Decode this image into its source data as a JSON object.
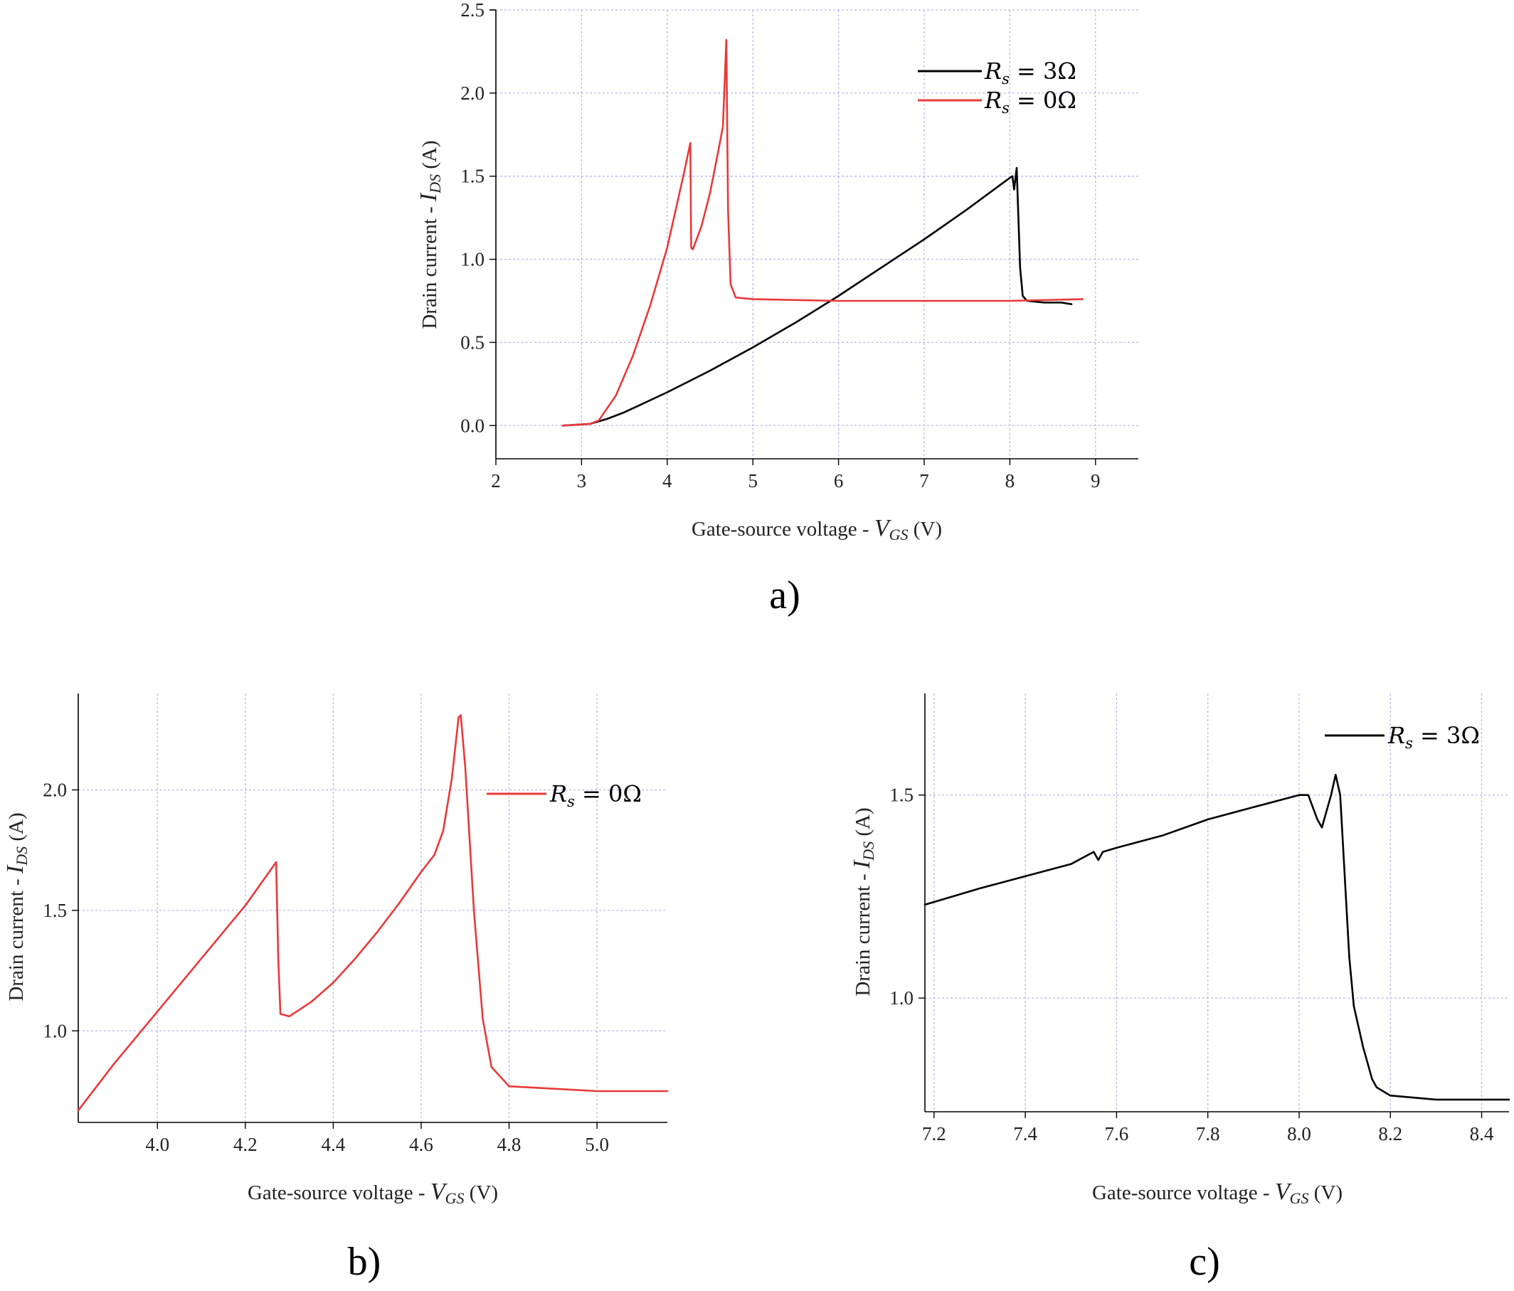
{
  "chart_data": [
    {
      "id": "a",
      "type": "line",
      "panel_label": "a)",
      "xlabel": "Gate-source voltage - V_GS (V)",
      "ylabel": "Drain current - I_DS (A)",
      "xlim": [
        2,
        9.5
      ],
      "ylim": [
        -0.2,
        2.5
      ],
      "xticks": [
        "2",
        "3",
        "4",
        "5",
        "6",
        "7",
        "8",
        "9"
      ],
      "yticks": [
        "0.0",
        "0.5",
        "1.0",
        "1.5",
        "2.0",
        "2.5"
      ],
      "grid": true,
      "legend_position": "top-right",
      "series": [
        {
          "name": "Rs = 3Ω",
          "color": "#000000",
          "x": [
            2.78,
            3.1,
            3.3,
            3.5,
            4.0,
            4.5,
            5.0,
            5.5,
            6.0,
            6.5,
            7.0,
            7.5,
            8.0,
            8.03,
            8.05,
            8.08,
            8.1,
            8.12,
            8.15,
            8.2,
            8.4,
            8.6,
            8.72
          ],
          "y": [
            0.0,
            0.01,
            0.04,
            0.08,
            0.2,
            0.33,
            0.47,
            0.62,
            0.78,
            0.95,
            1.12,
            1.3,
            1.49,
            1.5,
            1.42,
            1.55,
            1.25,
            0.95,
            0.78,
            0.75,
            0.74,
            0.74,
            0.73
          ]
        },
        {
          "name": "Rs = 0Ω",
          "color": "#e8393a",
          "x": [
            2.78,
            3.1,
            3.2,
            3.4,
            3.6,
            3.8,
            4.0,
            4.2,
            4.27,
            4.28,
            4.3,
            4.4,
            4.5,
            4.6,
            4.65,
            4.69,
            4.71,
            4.74,
            4.8,
            5.0,
            6.0,
            7.0,
            8.0,
            8.85
          ],
          "y": [
            0.0,
            0.01,
            0.03,
            0.18,
            0.42,
            0.72,
            1.07,
            1.53,
            1.7,
            1.07,
            1.06,
            1.2,
            1.4,
            1.66,
            1.8,
            2.32,
            1.3,
            0.85,
            0.77,
            0.76,
            0.75,
            0.75,
            0.75,
            0.76
          ]
        }
      ]
    },
    {
      "id": "b",
      "type": "line",
      "panel_label": "b)",
      "xlabel": "Gate-source voltage - V_GS (V)",
      "ylabel": "Drain current - I_DS (A)",
      "xlim": [
        3.82,
        5.16
      ],
      "ylim": [
        0.62,
        2.4
      ],
      "xticks": [
        "4.0",
        "4.2",
        "4.4",
        "4.6",
        "4.8",
        "5.0"
      ],
      "yticks": [
        "1.0",
        "1.5",
        "2.0"
      ],
      "grid": true,
      "legend_position": "top-right",
      "series": [
        {
          "name": "Rs = 0Ω",
          "color": "#e8393a",
          "x": [
            3.82,
            3.9,
            4.0,
            4.1,
            4.2,
            4.27,
            4.275,
            4.28,
            4.3,
            4.35,
            4.4,
            4.45,
            4.5,
            4.55,
            4.6,
            4.63,
            4.65,
            4.67,
            4.685,
            4.69,
            4.7,
            4.72,
            4.74,
            4.76,
            4.8,
            4.9,
            5.0,
            5.1,
            5.16
          ],
          "y": [
            0.67,
            0.86,
            1.08,
            1.3,
            1.52,
            1.7,
            1.3,
            1.07,
            1.06,
            1.12,
            1.2,
            1.3,
            1.41,
            1.53,
            1.66,
            1.73,
            1.83,
            2.05,
            2.3,
            2.31,
            2.1,
            1.5,
            1.05,
            0.85,
            0.77,
            0.76,
            0.75,
            0.75,
            0.75
          ]
        }
      ]
    },
    {
      "id": "c",
      "type": "line",
      "panel_label": "c)",
      "xlabel": "Gate-source voltage - V_GS (V)",
      "ylabel": "Drain current - I_DS (A)",
      "xlim": [
        7.18,
        8.46
      ],
      "ylim": [
        0.72,
        1.75
      ],
      "xticks": [
        "7.2",
        "7.4",
        "7.6",
        "7.8",
        "8.0",
        "8.2",
        "8.4"
      ],
      "yticks": [
        "1.0",
        "1.5"
      ],
      "grid": true,
      "legend_position": "top-right",
      "series": [
        {
          "name": "Rs = 3Ω",
          "color": "#000000",
          "x": [
            7.18,
            7.3,
            7.4,
            7.5,
            7.55,
            7.56,
            7.57,
            7.6,
            7.7,
            7.8,
            7.9,
            8.0,
            8.02,
            8.04,
            8.05,
            8.07,
            8.08,
            8.09,
            8.1,
            8.11,
            8.12,
            8.14,
            8.16,
            8.17,
            8.2,
            8.3,
            8.4,
            8.46
          ],
          "y": [
            1.23,
            1.27,
            1.3,
            1.33,
            1.36,
            1.34,
            1.36,
            1.37,
            1.4,
            1.44,
            1.47,
            1.5,
            1.5,
            1.44,
            1.42,
            1.5,
            1.55,
            1.5,
            1.3,
            1.1,
            0.98,
            0.88,
            0.8,
            0.78,
            0.76,
            0.75,
            0.75,
            0.75
          ]
        }
      ]
    }
  ]
}
